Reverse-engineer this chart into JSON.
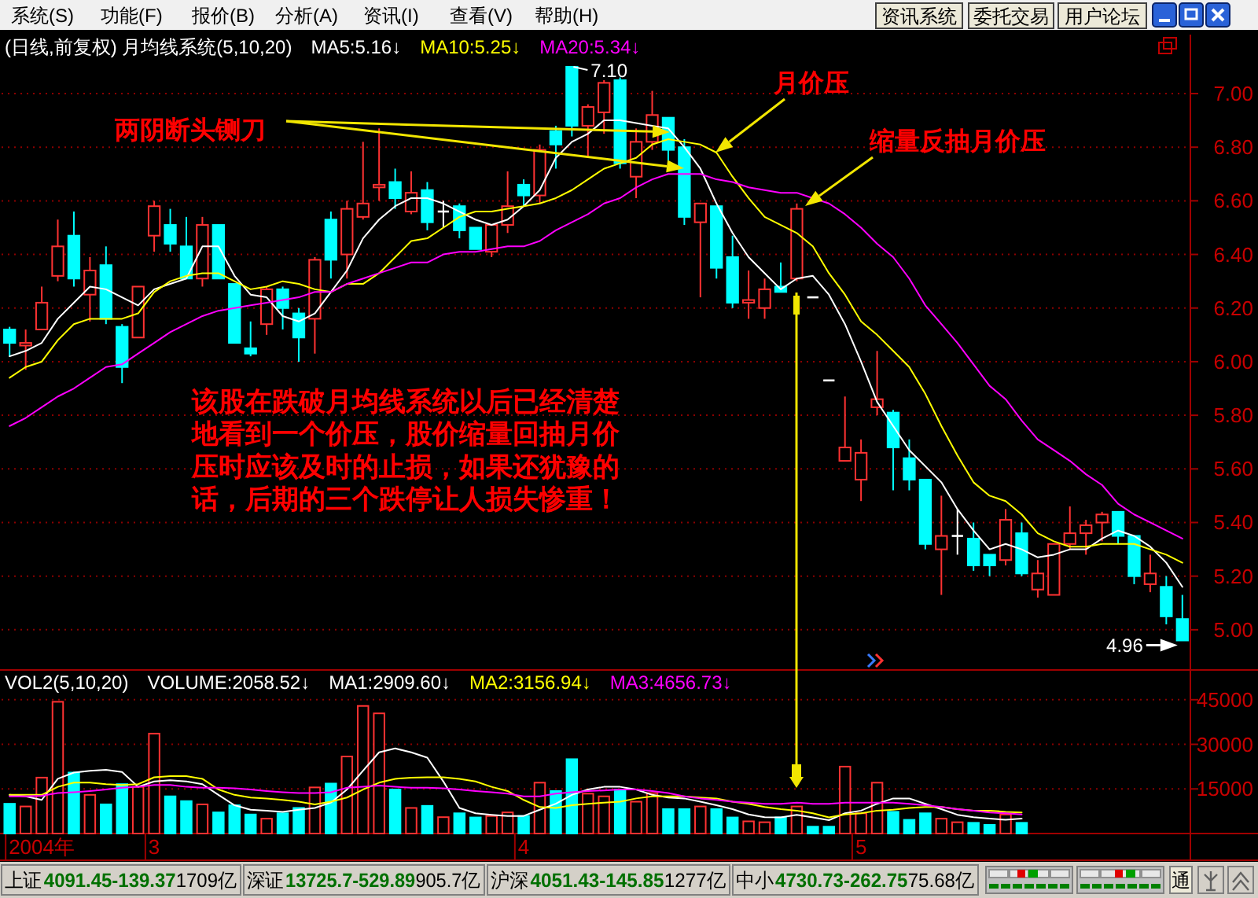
{
  "chart_data": [
    {
      "type": "candlestick",
      "title": "(日线,前复权) 月均线系统(5,10,20)",
      "categories": [
        null,
        null,
        null,
        null,
        null,
        null,
        null,
        null,
        null,
        null,
        null,
        null,
        null,
        null,
        null,
        null,
        null,
        null,
        null,
        null,
        null,
        null,
        null,
        null,
        null,
        null,
        null,
        null,
        null,
        null,
        null,
        null,
        null,
        null,
        null,
        null,
        null,
        null,
        null,
        null,
        null,
        null,
        null,
        null,
        null,
        null,
        null,
        null,
        null,
        null,
        null,
        null,
        null,
        null,
        null,
        null,
        null,
        null,
        null,
        null,
        null,
        null,
        null,
        null,
        null,
        null,
        null,
        null,
        null,
        null,
        null,
        null,
        null,
        null
      ],
      "ohlc": [
        [
          6.12,
          6.13,
          6.02,
          6.07
        ],
        [
          6.06,
          6.12,
          5.97,
          6.07
        ],
        [
          6.12,
          6.28,
          6.12,
          6.22
        ],
        [
          6.32,
          6.53,
          6.3,
          6.43
        ],
        [
          6.47,
          6.56,
          6.28,
          6.31
        ],
        [
          6.25,
          6.39,
          6.15,
          6.34
        ],
        [
          6.36,
          6.43,
          6.14,
          6.16
        ],
        [
          6.13,
          6.14,
          5.92,
          5.98
        ],
        [
          6.09,
          6.28,
          6.09,
          6.28
        ],
        [
          6.47,
          6.6,
          6.41,
          6.58
        ],
        [
          6.51,
          6.57,
          6.41,
          6.44
        ],
        [
          6.43,
          6.54,
          6.31,
          6.31
        ],
        [
          6.31,
          6.54,
          6.28,
          6.51
        ],
        [
          6.51,
          6.51,
          6.31,
          6.31
        ],
        [
          6.29,
          6.29,
          6.07,
          6.07
        ],
        [
          6.05,
          6.15,
          6.02,
          6.03
        ],
        [
          6.14,
          6.28,
          6.1,
          6.27
        ],
        [
          6.27,
          6.28,
          6.12,
          6.2
        ],
        [
          6.18,
          6.2,
          6.0,
          6.09
        ],
        [
          6.16,
          6.39,
          6.03,
          6.38
        ],
        [
          6.53,
          6.56,
          6.31,
          6.38
        ],
        [
          6.4,
          6.6,
          6.31,
          6.57
        ],
        [
          6.54,
          6.82,
          6.53,
          6.59
        ],
        [
          6.65,
          6.87,
          6.6,
          6.66
        ],
        [
          6.67,
          6.72,
          6.57,
          6.61
        ],
        [
          6.56,
          6.71,
          6.55,
          6.63
        ],
        [
          6.64,
          6.67,
          6.49,
          6.52
        ],
        [
          6.56,
          6.6,
          6.5,
          6.56
        ],
        [
          6.58,
          6.59,
          6.46,
          6.49
        ],
        [
          6.5,
          6.5,
          6.42,
          6.42
        ],
        [
          6.41,
          6.51,
          6.39,
          6.51
        ],
        [
          6.51,
          6.71,
          6.48,
          6.58
        ],
        [
          6.66,
          6.68,
          6.58,
          6.62
        ],
        [
          6.62,
          6.81,
          6.59,
          6.79
        ],
        [
          6.86,
          6.88,
          6.72,
          6.81
        ],
        [
          7.1,
          7.1,
          6.84,
          6.88
        ],
        [
          6.88,
          6.96,
          6.76,
          6.95
        ],
        [
          6.93,
          7.05,
          6.85,
          7.04
        ],
        [
          7.05,
          7.06,
          6.72,
          6.74
        ],
        [
          6.69,
          6.87,
          6.61,
          6.82
        ],
        [
          6.82,
          7.01,
          6.79,
          6.92
        ],
        [
          6.91,
          6.91,
          6.75,
          6.79
        ],
        [
          6.8,
          6.83,
          6.51,
          6.54
        ],
        [
          6.52,
          6.59,
          6.24,
          6.59
        ],
        [
          6.58,
          6.58,
          6.31,
          6.35
        ],
        [
          6.39,
          6.47,
          6.2,
          6.22
        ],
        [
          6.22,
          6.34,
          6.16,
          6.23
        ],
        [
          6.2,
          6.31,
          6.16,
          6.27
        ],
        [
          6.28,
          6.37,
          6.26,
          6.26
        ],
        [
          6.31,
          6.59,
          6.3,
          6.57
        ],
        [
          6.24,
          6.24,
          6.24,
          6.24
        ],
        [
          5.93,
          5.93,
          5.93,
          5.93
        ],
        [
          5.63,
          5.87,
          5.63,
          5.68
        ],
        [
          5.56,
          5.71,
          5.48,
          5.66
        ],
        [
          5.83,
          6.04,
          5.8,
          5.86
        ],
        [
          5.81,
          5.82,
          5.52,
          5.68
        ],
        [
          5.64,
          5.71,
          5.52,
          5.56
        ],
        [
          5.56,
          5.56,
          5.3,
          5.32
        ],
        [
          5.3,
          5.5,
          5.13,
          5.35
        ],
        [
          5.35,
          5.45,
          5.28,
          5.35
        ],
        [
          5.34,
          5.4,
          5.22,
          5.24
        ],
        [
          5.28,
          5.28,
          5.2,
          5.24
        ],
        [
          5.26,
          5.45,
          5.24,
          5.41
        ],
        [
          5.36,
          5.4,
          5.2,
          5.21
        ],
        [
          5.15,
          5.26,
          5.12,
          5.21
        ],
        [
          5.13,
          5.32,
          5.13,
          5.32
        ],
        [
          5.32,
          5.46,
          5.3,
          5.36
        ],
        [
          5.36,
          5.41,
          5.28,
          5.39
        ],
        [
          5.4,
          5.44,
          5.33,
          5.43
        ],
        [
          5.44,
          5.44,
          5.32,
          5.35
        ],
        [
          5.35,
          5.35,
          5.17,
          5.2
        ],
        [
          5.17,
          5.28,
          5.14,
          5.21
        ],
        [
          5.16,
          5.2,
          5.02,
          5.05
        ],
        [
          5.04,
          5.13,
          4.96,
          4.96
        ]
      ],
      "colors": [
        "#00ffff",
        "#ff3232",
        "#ff3232",
        "#ff3232",
        "#00ffff",
        "#ff3232",
        "#00ffff",
        "#00ffff",
        "#ff3232",
        "#ff3232",
        "#00ffff",
        "#00ffff",
        "#ff3232",
        "#00ffff",
        "#00ffff",
        "#00ffff",
        "#ff3232",
        "#00ffff",
        "#00ffff",
        "#ff3232",
        "#00ffff",
        "#ff3232",
        "#ff3232",
        "#ff3232",
        "#00ffff",
        "#ff3232",
        "#00ffff",
        "#ffffff",
        "#00ffff",
        "#00ffff",
        "#ff3232",
        "#ff3232",
        "#00ffff",
        "#ff3232",
        "#00ffff",
        "#00ffff",
        "#ff3232",
        "#ff3232",
        "#00ffff",
        "#ff3232",
        "#ff3232",
        "#00ffff",
        "#00ffff",
        "#ff3232",
        "#00ffff",
        "#00ffff",
        "#ff3232",
        "#ff3232",
        "#00ffff",
        "#ff3232",
        "#ffffff",
        "#ffffff",
        "#ff3232",
        "#ff3232",
        "#ff3232",
        "#00ffff",
        "#00ffff",
        "#00ffff",
        "#ff3232",
        "#ffffff",
        "#00ffff",
        "#00ffff",
        "#ff3232",
        "#00ffff",
        "#ff3232",
        "#ff3232",
        "#ff3232",
        "#ff3232",
        "#ff3232",
        "#00ffff",
        "#00ffff",
        "#ff3232",
        "#00ffff",
        "#00ffff"
      ],
      "series": [
        {
          "name": "MA5:5.16↓",
          "type": "line",
          "color": "#ffffff",
          "values": [
            6.02,
            6.04,
            6.07,
            6.16,
            6.22,
            6.28,
            6.27,
            6.24,
            6.21,
            6.27,
            6.29,
            6.31,
            6.43,
            6.43,
            6.32,
            6.25,
            6.24,
            6.17,
            6.15,
            6.18,
            6.26,
            6.34,
            6.46,
            6.53,
            6.58,
            6.61,
            6.61,
            6.59,
            6.56,
            6.53,
            6.51,
            6.53,
            6.58,
            6.64,
            6.76,
            6.82,
            6.85,
            6.9,
            6.9,
            6.89,
            6.88,
            6.87,
            6.8,
            6.72,
            6.59,
            6.48,
            6.39,
            6.33,
            6.27,
            6.31,
            6.32,
            6.25,
            6.14,
            6.0,
            5.85,
            5.76,
            5.67,
            5.61,
            5.55,
            5.45,
            5.37,
            5.3,
            5.32,
            5.3,
            5.27,
            5.28,
            5.3,
            5.3,
            5.34,
            5.37,
            5.35,
            5.31,
            5.25,
            5.16
          ]
        },
        {
          "name": "MA10:5.25↓",
          "type": "line",
          "color": "#ffff00",
          "values": [
            5.94,
            5.98,
            6.0,
            6.08,
            6.14,
            6.16,
            6.16,
            6.16,
            6.18,
            6.26,
            6.3,
            6.32,
            6.33,
            6.33,
            6.3,
            6.27,
            6.28,
            6.3,
            6.29,
            6.27,
            6.26,
            6.29,
            6.29,
            6.33,
            6.39,
            6.45,
            6.46,
            6.5,
            6.54,
            6.56,
            6.56,
            6.57,
            6.58,
            6.59,
            6.61,
            6.64,
            6.68,
            6.72,
            6.74,
            6.76,
            6.81,
            6.83,
            6.82,
            6.81,
            6.78,
            6.69,
            6.61,
            6.54,
            6.51,
            6.48,
            6.43,
            6.33,
            6.25,
            6.15,
            6.1,
            6.04,
            5.98,
            5.88,
            5.76,
            5.65,
            5.55,
            5.5,
            5.48,
            5.43,
            5.36,
            5.33,
            5.31,
            5.31,
            5.32,
            5.32,
            5.32,
            5.3,
            5.28,
            5.25
          ]
        },
        {
          "name": "MA20:5.34↓",
          "type": "line",
          "color": "#ff00ff",
          "values": [
            5.76,
            5.79,
            5.83,
            5.87,
            5.9,
            5.94,
            5.98,
            5.99,
            6.03,
            6.07,
            6.11,
            6.14,
            6.17,
            6.19,
            6.2,
            6.21,
            6.22,
            6.23,
            6.24,
            6.26,
            6.26,
            6.29,
            6.31,
            6.33,
            6.35,
            6.37,
            6.37,
            6.4,
            6.41,
            6.41,
            6.42,
            6.43,
            6.43,
            6.45,
            6.49,
            6.52,
            6.55,
            6.59,
            6.61,
            6.65,
            6.68,
            6.7,
            6.7,
            6.7,
            6.68,
            6.67,
            6.65,
            6.64,
            6.63,
            6.63,
            6.61,
            6.59,
            6.55,
            6.5,
            6.44,
            6.39,
            6.31,
            6.21,
            6.14,
            6.07,
            5.99,
            5.91,
            5.86,
            5.78,
            5.71,
            5.67,
            5.63,
            5.58,
            5.54,
            5.47,
            5.43,
            5.4,
            5.37,
            5.34
          ]
        }
      ],
      "ylim": [
        4.85,
        7.22
      ],
      "yticks": [
        {
          "value": 5,
          "label": "5.00"
        },
        {
          "value": 5.2,
          "label": "5.20"
        },
        {
          "value": 5.4,
          "label": "5.40"
        },
        {
          "value": 5.6,
          "label": "5.60"
        },
        {
          "value": 5.8,
          "label": "5.80"
        },
        {
          "value": 6,
          "label": "6.00"
        },
        {
          "value": 6.2,
          "label": "6.20"
        },
        {
          "value": 6.4,
          "label": "6.40"
        },
        {
          "value": 6.6,
          "label": "6.60"
        },
        {
          "value": 6.8,
          "label": "6.80"
        },
        {
          "value": 7,
          "label": "7.00"
        }
      ],
      "grid": "y",
      "legend": "top left",
      "tick_labels": "y",
      "annotations": [
        "系统(S)",
        "功能(F)",
        "报价(B)",
        "分析(A)",
        "资讯(I)",
        "查看(V)",
        "帮助(H)",
        "资讯系统",
        "委托交易",
        "用户论坛",
        "两阴断头铡刀",
        "月价压",
        "缩量反抽月价压",
        "该股在跌破月均线系统以后已经清楚地看到一个价压，股价缩量回抽月价压时应该及时的止损，如果还犹豫的话，后期的三个跌停让人损失惨重！",
        "7.10",
        "4.96"
      ]
    },
    {
      "type": "bar",
      "title": "VOL2(5,10,20)",
      "categories": [
        null,
        null,
        "2004年",
        null,
        null,
        null,
        null,
        null,
        null,
        "3",
        null,
        null,
        null,
        null,
        null,
        null,
        null,
        null,
        null,
        null,
        null,
        null,
        null,
        null,
        null,
        null,
        null,
        null,
        null,
        null,
        null,
        null,
        "4",
        null,
        null,
        null,
        null,
        null,
        null,
        null,
        null,
        null,
        null,
        null,
        null,
        null,
        null,
        null,
        null,
        null,
        null,
        null,
        null,
        "5",
        null,
        null,
        null,
        null,
        null,
        null,
        null,
        null,
        null,
        null,
        null,
        null,
        null,
        null,
        null,
        null,
        null,
        null,
        null,
        null
      ],
      "series": [
        {
          "colors": [
            "#00ffff",
            "#ff3232",
            "#ff3232",
            "#ff3232",
            "#00ffff",
            "#ff3232",
            "#00ffff",
            "#00ffff",
            "#ff3232",
            "#ff3232",
            "#00ffff",
            "#00ffff",
            "#ff3232",
            "#00ffff",
            "#00ffff",
            "#00ffff",
            "#ff3232",
            "#00ffff",
            "#00ffff",
            "#ff3232",
            "#00ffff",
            "#ff3232",
            "#ff3232",
            "#ff3232",
            "#00ffff",
            "#ff3232",
            "#00ffff",
            "#ff3232",
            "#00ffff",
            "#00ffff",
            "#ff3232",
            "#ff3232",
            "#00ffff",
            "#ff3232",
            "#00ffff",
            "#00ffff",
            "#ff3232",
            "#ff3232",
            "#00ffff",
            "#ff3232",
            "#ff3232",
            "#00ffff",
            "#00ffff",
            "#ff3232",
            "#00ffff",
            "#00ffff",
            "#ff3232",
            "#ff3232",
            "#00ffff",
            "#ff3232",
            "#00ffff",
            "#00ffff",
            "#ff3232",
            "#ff3232",
            "#ff3232",
            "#00ffff",
            "#00ffff",
            "#00ffff",
            "#ff3232",
            "#ff3232",
            "#00ffff",
            "#00ffff",
            "#ff3232",
            "#00ffff",
            null,
            null,
            null,
            null,
            null,
            null,
            null,
            null,
            null,
            null
          ],
          "values": [
            10000,
            9100,
            18800,
            44300,
            20500,
            13000,
            9800,
            16600,
            15700,
            33600,
            12500,
            10900,
            9800,
            7100,
            9500,
            6400,
            5000,
            6800,
            8600,
            15500,
            16800,
            25900,
            42900,
            40400,
            14800,
            8600,
            9300,
            5500,
            6800,
            5400,
            5900,
            7100,
            5900,
            17100,
            14300,
            25000,
            13400,
            12500,
            14800,
            10700,
            13600,
            8200,
            8200,
            9100,
            8200,
            5400,
            4100,
            3800,
            5400,
            9100,
            2300,
            2300,
            22500,
            6800,
            17100,
            7300,
            4600,
            6800,
            5000,
            3800,
            3600,
            2900,
            6400,
            3600,
            null,
            null,
            null,
            null,
            null,
            null,
            null,
            null,
            null,
            null
          ]
        },
        {
          "name": "MA1:2909.60↓",
          "type": "line",
          "color": "#ffffff",
          "values": [
            13000,
            12500,
            11300,
            18400,
            20500,
            21100,
            21400,
            20700,
            15700,
            17500,
            17900,
            17500,
            16600,
            13000,
            9500,
            8000,
            7700,
            7300,
            8000,
            8600,
            10400,
            14800,
            21100,
            27300,
            28600,
            27300,
            25500,
            17500,
            8600,
            6800,
            6300,
            5900,
            5900,
            8000,
            10000,
            13000,
            14800,
            15700,
            15700,
            14800,
            13000,
            12100,
            11800,
            10700,
            9500,
            8200,
            6400,
            5500,
            5400,
            6300,
            5400,
            4500,
            6800,
            7700,
            10000,
            11800,
            11800,
            10000,
            8200,
            6300,
            5500,
            5000,
            4600,
            5000,
            null,
            null,
            null,
            null,
            null,
            null,
            null,
            null,
            null,
            null
          ]
        },
        {
          "name": "MA2:3156.94↓",
          "type": "line",
          "color": "#ffff00",
          "values": [
            13000,
            13000,
            13000,
            15700,
            17100,
            17100,
            16600,
            16300,
            16600,
            18900,
            19300,
            19300,
            18400,
            14800,
            13000,
            12100,
            11800,
            11300,
            10700,
            9800,
            10700,
            12100,
            14800,
            17100,
            18400,
            18800,
            18900,
            18900,
            18400,
            17500,
            15700,
            14300,
            11300,
            8900,
            8600,
            9500,
            10000,
            10400,
            10700,
            11800,
            12500,
            12500,
            12500,
            12100,
            11800,
            10700,
            10000,
            8900,
            8200,
            7700,
            6800,
            5400,
            6400,
            6800,
            7700,
            8000,
            8600,
            8900,
            8900,
            8200,
            7700,
            7700,
            7300,
            7100,
            null,
            null,
            null,
            null,
            null,
            null,
            null,
            null,
            null,
            null
          ]
        },
        {
          "name": "MA3:4656.73↓",
          "type": "line",
          "color": "#ff00ff",
          "values": [
            12500,
            12500,
            12700,
            13600,
            13900,
            14300,
            14800,
            15400,
            15700,
            16300,
            16300,
            15700,
            15400,
            15400,
            15200,
            14800,
            14300,
            13900,
            13600,
            13600,
            13900,
            15400,
            15700,
            16100,
            15700,
            15400,
            15400,
            15200,
            14800,
            14300,
            13900,
            13400,
            12500,
            12500,
            13400,
            13900,
            14300,
            14500,
            14800,
            14800,
            14300,
            13600,
            12500,
            11800,
            11300,
            10700,
            10400,
            10000,
            10000,
            10400,
            10000,
            10000,
            10400,
            10400,
            10400,
            10400,
            10000,
            9500,
            8900,
            8200,
            7700,
            7100,
            6800,
            6400,
            null,
            null,
            null,
            null,
            null,
            null,
            null,
            null,
            null,
            null
          ]
        }
      ],
      "ylim": [
        0,
        55000
      ],
      "yticks": [
        15000,
        30000,
        45000
      ],
      "grid": "y",
      "legend": "top left",
      "annotations": [
        "VOLUME:2058.52↓",
        "上证",
        "4091.45-139.37",
        "1709亿",
        "深证",
        "13725.7-529.89",
        "905.7亿",
        "沪深",
        "4051.43-145.85",
        "1277亿",
        "中小",
        "4730.73-262.75",
        "75.68亿",
        "通"
      ]
    }
  ]
}
